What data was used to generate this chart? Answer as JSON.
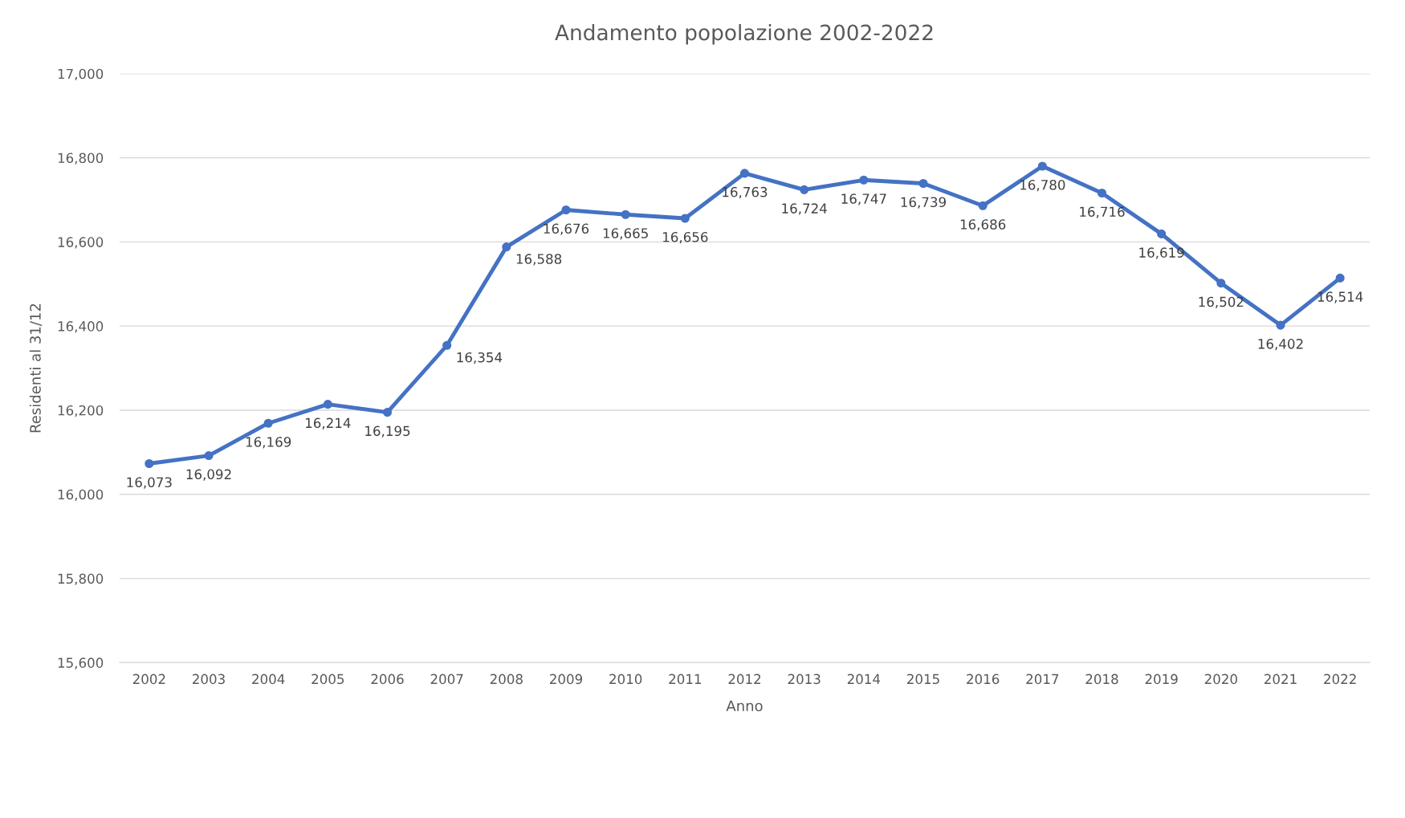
{
  "chart_data": {
    "type": "line",
    "title": "Andamento popolazione 2002-2022",
    "xlabel": "Anno",
    "ylabel": "Residenti al 31/12",
    "categories": [
      "2002",
      "2003",
      "2004",
      "2005",
      "2006",
      "2007",
      "2008",
      "2009",
      "2010",
      "2011",
      "2012",
      "2013",
      "2014",
      "2015",
      "2016",
      "2017",
      "2018",
      "2019",
      "2020",
      "2021",
      "2022"
    ],
    "series": [
      {
        "color": "#4472c4",
        "values": [
          16073,
          16092,
          16169,
          16214,
          16195,
          16354,
          16588,
          16676,
          16665,
          16656,
          16763,
          16724,
          16747,
          16739,
          16686,
          16780,
          16716,
          16619,
          16502,
          16402,
          16514
        ],
        "value_labels": [
          "16,073",
          "16,092",
          "16,169",
          "16,214",
          "16,195",
          "16,354",
          "16,588",
          "16,676",
          "16,665",
          "16,656",
          "16,763",
          "16,724",
          "16,747",
          "16,739",
          "16,686",
          "16,780",
          "16,716",
          "16,619",
          "16,502",
          "16,402",
          "16,514"
        ]
      }
    ],
    "ylim": [
      15600,
      17000
    ],
    "yticks": [
      {
        "value": 15600,
        "label": "15,600"
      },
      {
        "value": 15800,
        "label": "15,800"
      },
      {
        "value": 16000,
        "label": "16,000"
      },
      {
        "value": 16200,
        "label": "16,200"
      },
      {
        "value": 16400,
        "label": "16,400"
      },
      {
        "value": 16600,
        "label": "16,600"
      },
      {
        "value": 16800,
        "label": "16,800"
      },
      {
        "value": 17000,
        "label": "17,000"
      }
    ],
    "grid": "y",
    "marker": "circle",
    "line_style": "solid",
    "legend": false
  }
}
